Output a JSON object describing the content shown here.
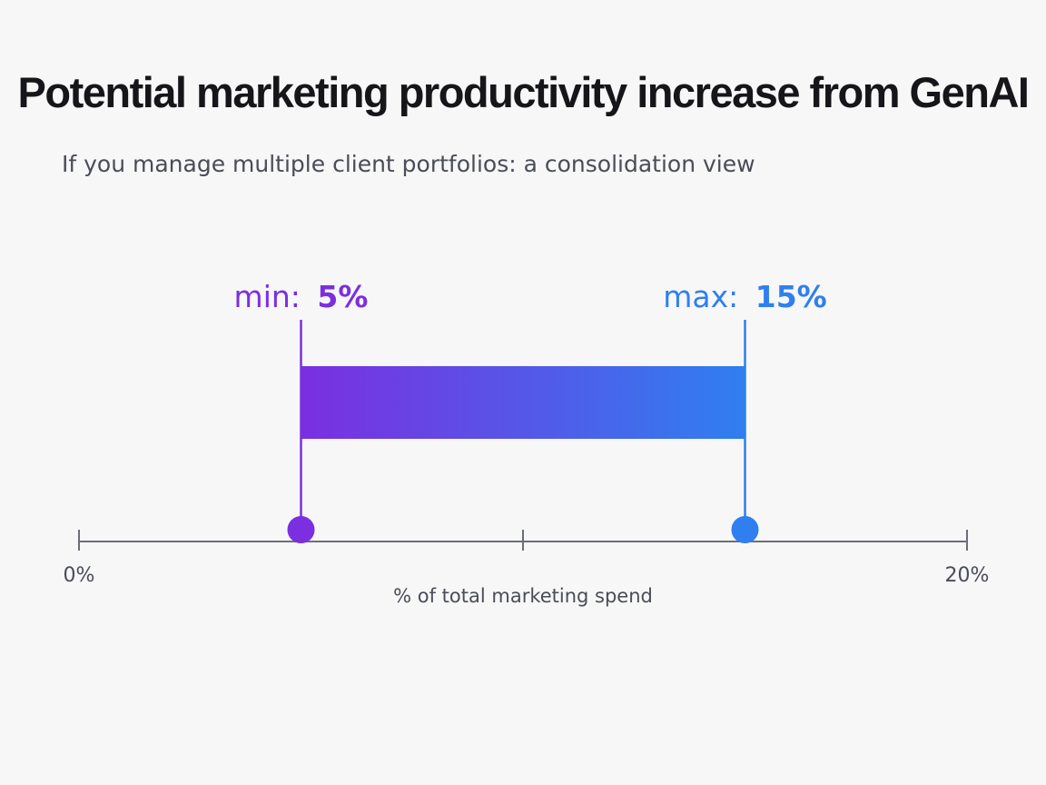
{
  "title": "Potential marketing productivity increase from GenAI",
  "subtitle": "If you manage multiple client portfolios: a consolidation view",
  "colors": {
    "min": "#7b2fe0",
    "max": "#2f7ff0",
    "axis": "#6b6e78",
    "text": "#16161a",
    "subtext": "#4a4d57"
  },
  "chart_data": {
    "type": "bar",
    "orientation": "horizontal-range",
    "min": {
      "label": "min:",
      "value_label": "5%",
      "value": 5
    },
    "max": {
      "label": "max:",
      "value_label": "15%",
      "value": 15
    },
    "xlim": [
      0,
      20
    ],
    "ticks": [
      0,
      10,
      20
    ],
    "tick_labels": {
      "start": "0%",
      "end": "20%"
    },
    "xlabel": "% of total marketing spend",
    "grid": false
  }
}
